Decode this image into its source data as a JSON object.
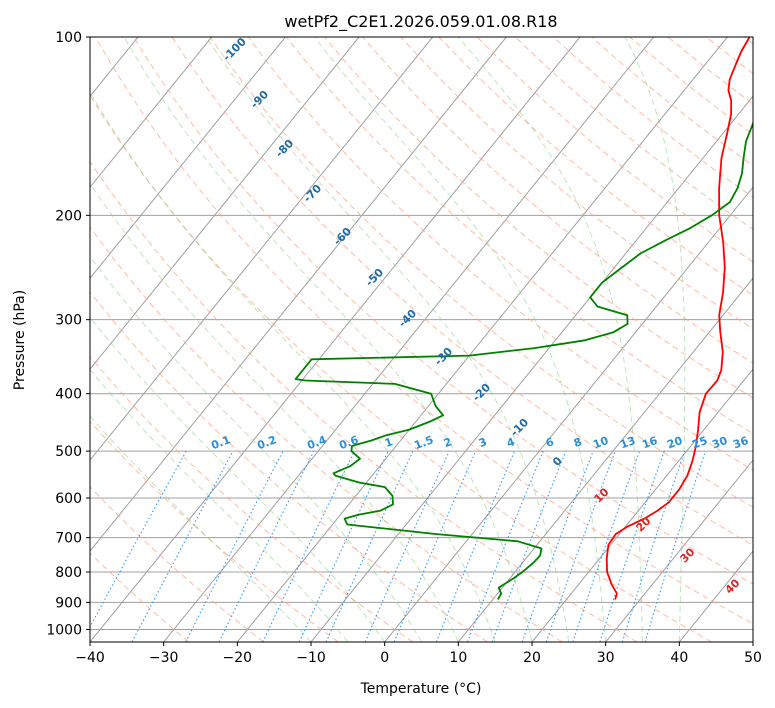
{
  "chart_data": {
    "type": "line",
    "diagram": "skew-T log-P",
    "title": "wetPf2_C2E1.2026.059.01.08.R18",
    "xlabel": "Temperature (°C)",
    "ylabel": "Pressure (hPa)",
    "xlim": [
      -40,
      50
    ],
    "ylim": [
      1050,
      100
    ],
    "y_scale": "log",
    "grid": true,
    "x_ticks": [
      "−40",
      "−30",
      "−20",
      "−10",
      "0",
      "10",
      "20",
      "30",
      "40",
      "50"
    ],
    "y_ticks": [
      "100",
      "200",
      "300",
      "400",
      "500",
      "600",
      "700",
      "800",
      "900",
      "1000"
    ],
    "series": [
      {
        "color": "#ff0000",
        "role": "temperature",
        "points": [
          [
            26.6,
            890
          ],
          [
            26.2,
            870
          ],
          [
            24.5,
            840
          ],
          [
            22.5,
            800
          ],
          [
            21,
            760
          ],
          [
            19.7,
            720
          ],
          [
            19.5,
            690
          ],
          [
            20.3,
            670
          ],
          [
            21.7,
            650
          ],
          [
            22.6,
            630
          ],
          [
            23.2,
            610
          ],
          [
            23.2,
            580
          ],
          [
            22.8,
            550
          ],
          [
            21.9,
            520
          ],
          [
            20.7,
            490
          ],
          [
            19.2,
            460
          ],
          [
            17.5,
            430
          ],
          [
            16.3,
            400
          ],
          [
            16.4,
            380
          ],
          [
            15.8,
            365
          ],
          [
            14,
            340
          ],
          [
            11.5,
            315
          ],
          [
            9.5,
            295
          ],
          [
            7.5,
            270
          ],
          [
            5,
            245
          ],
          [
            2,
            222
          ],
          [
            -1.5,
            200
          ],
          [
            -4.5,
            180
          ],
          [
            -7.5,
            160
          ],
          [
            -9.5,
            145
          ],
          [
            -11,
            135
          ],
          [
            -12.5,
            128
          ],
          [
            -14,
            123
          ],
          [
            -15,
            118
          ],
          [
            -15.5,
            114
          ],
          [
            -16,
            110
          ],
          [
            -16.5,
            106
          ],
          [
            -17,
            100
          ]
        ]
      },
      {
        "color": "#008000",
        "role": "dewpoint",
        "points": [
          [
            10.7,
            890
          ],
          [
            10.5,
            870
          ],
          [
            9.5,
            850
          ],
          [
            10,
            835
          ],
          [
            10.5,
            820
          ],
          [
            11,
            800
          ],
          [
            11.5,
            770
          ],
          [
            11.6,
            750
          ],
          [
            11,
            730
          ],
          [
            7,
            710
          ],
          [
            -5,
            690
          ],
          [
            -18,
            665
          ],
          [
            -19,
            650
          ],
          [
            -17.5,
            640
          ],
          [
            -15,
            630
          ],
          [
            -14,
            615
          ],
          [
            -15,
            595
          ],
          [
            -17,
            575
          ],
          [
            -21,
            565
          ],
          [
            -25,
            550
          ],
          [
            -25.5,
            545
          ],
          [
            -24,
            530
          ],
          [
            -23.5,
            515
          ],
          [
            -25.5,
            500
          ],
          [
            -26,
            490
          ],
          [
            -24,
            480
          ],
          [
            -22.5,
            470
          ],
          [
            -20,
            460
          ],
          [
            -18,
            445
          ],
          [
            -17,
            435
          ],
          [
            -19,
            420
          ],
          [
            -21,
            400
          ],
          [
            -27,
            385
          ],
          [
            -39.5,
            380
          ],
          [
            -41,
            378
          ],
          [
            -41,
            350
          ],
          [
            -20,
            345
          ],
          [
            -12,
            335
          ],
          [
            -6,
            325
          ],
          [
            -3,
            315
          ],
          [
            -2,
            305
          ],
          [
            -3,
            295
          ],
          [
            -8,
            285
          ],
          [
            -10,
            275
          ],
          [
            -10,
            260
          ],
          [
            -9,
            245
          ],
          [
            -8,
            232
          ],
          [
            -6,
            220
          ],
          [
            -4,
            210
          ],
          [
            -2.5,
            200
          ],
          [
            -1.5,
            190
          ],
          [
            -2,
            180
          ],
          [
            -3,
            170
          ],
          [
            -4.5,
            160
          ],
          [
            -6,
            150
          ],
          [
            -7,
            140
          ],
          [
            -8.5,
            130
          ],
          [
            -10,
            123
          ],
          [
            -11.5,
            118
          ],
          [
            -12.5,
            113
          ],
          [
            -12,
            106
          ],
          [
            -11,
            100
          ]
        ]
      }
    ],
    "dry_adiabat_labels": [
      "-100",
      "-90",
      "-80",
      "-70",
      "-60",
      "-50",
      "-40",
      "-30",
      "-20",
      "-10",
      "0"
    ],
    "mixing_ratio_labels": [
      "0.1",
      "0.2",
      "0.4",
      "0.6",
      "1",
      "1.5",
      "2",
      "3",
      "4",
      "6",
      "8",
      "10",
      "13",
      "16",
      "20",
      "25",
      "30",
      "36"
    ],
    "moist_adiabat_labels": [
      "10",
      "20",
      "30",
      "40"
    ],
    "colors": {
      "isotherm": "#a0a0a0",
      "isobar": "#a0a0a0",
      "dry_adiabat": "#ffa07a",
      "moist_adiabat": "#7ccd7c",
      "mixing_ratio": "#1e90ff",
      "temperature": "#ff0000",
      "dewpoint": "#008000"
    }
  }
}
